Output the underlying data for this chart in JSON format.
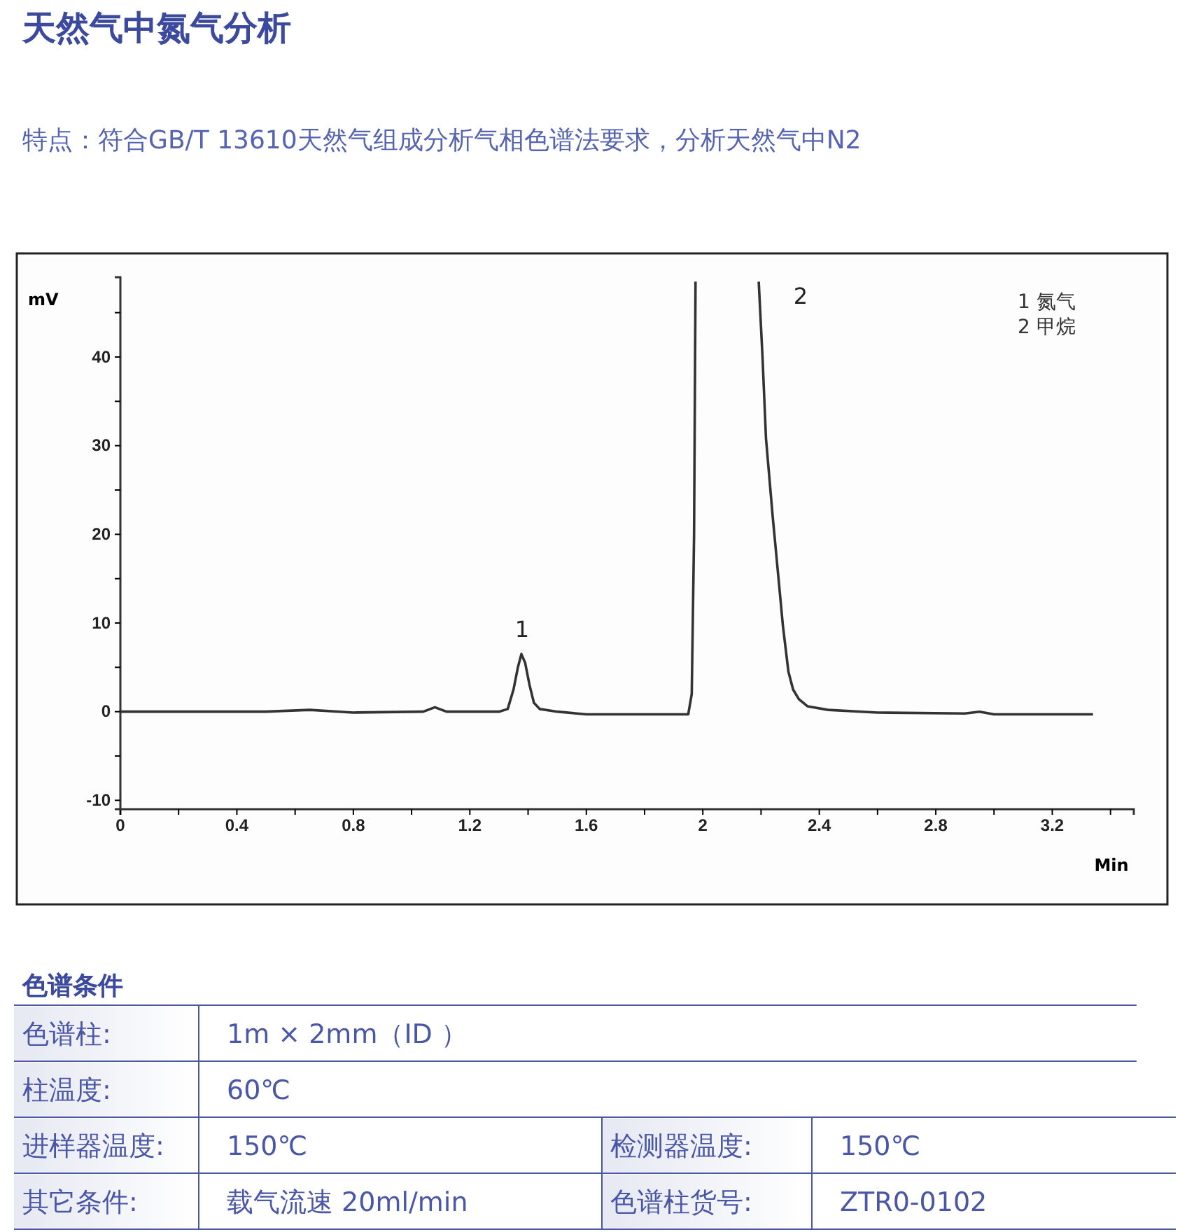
{
  "chart_data": [
    {
      "type": "line",
      "title": "天然气中氮气分析",
      "subtitle": "特点：符合GB/T 13610天然气组成分析气相色谱法要求，分析天然气中N2",
      "xlabel": "Min",
      "ylabel": "mV",
      "xlim": [
        0,
        3.48
      ],
      "ylim": [
        -11,
        49
      ],
      "xticks": [
        0,
        {
          "value": 0.2,
          "label": null
        },
        0.4,
        {
          "value": 0.6,
          "label": null
        },
        0.8,
        {
          "value": 1.0,
          "label": null
        },
        1.2,
        {
          "value": 1.4,
          "label": null
        },
        1.6,
        {
          "value": 1.8,
          "label": null
        },
        2,
        {
          "value": 2.2,
          "label": null
        },
        2.4,
        {
          "value": 2.6,
          "label": null
        },
        2.8,
        {
          "value": 3.0,
          "label": null
        },
        3.2,
        {
          "value": 3.4,
          "label": null
        }
      ],
      "yticks": [
        -10,
        {
          "value": -5,
          "label": null
        },
        0,
        {
          "value": 5,
          "label": null
        },
        10,
        {
          "value": 15,
          "label": null
        },
        20,
        {
          "value": 25,
          "label": null
        },
        30,
        {
          "value": 35,
          "label": null
        },
        40,
        {
          "value": 45,
          "label": null
        }
      ],
      "grid": false,
      "marker": "none",
      "line_style": "solid",
      "series": [
        {
          "color": "#333333",
          "x": [
            0,
            0.5,
            0.65,
            0.8,
            1.04,
            1.08,
            1.12,
            1.3,
            1.33,
            1.35,
            1.365,
            1.377,
            1.39,
            1.405,
            1.42,
            1.44,
            1.5,
            1.6,
            1.8,
            1.95,
            1.962,
            1.97,
            1.975,
            2.08,
            2.192,
            2.205,
            2.217,
            2.24,
            2.26,
            2.275,
            2.294,
            2.31,
            2.33,
            2.36,
            2.43,
            2.6,
            2.9,
            2.95,
            3.0,
            3.34
          ],
          "values": [
            0,
            0,
            0.2,
            -0.1,
            0,
            0.5,
            0,
            0,
            0.3,
            2.5,
            5,
            6.5,
            5.5,
            3,
            1,
            0.3,
            0,
            -0.3,
            -0.3,
            -0.3,
            2,
            20,
            48.5,
            null,
            48.5,
            40,
            30.8,
            22,
            15,
            9.7,
            4.5,
            2.5,
            1.4,
            0.6,
            0.2,
            -0.1,
            -0.2,
            0,
            -0.3,
            -0.3
          ]
        }
      ],
      "annotations": [
        "1",
        "2",
        "1 氮气",
        "2 甲烷"
      ]
    },
    {
      "type": "other",
      "title": "色谱条件",
      "annotations": [
        "色谱柱:",
        "1m × 2mm（ID ）",
        "柱温度:",
        "60℃",
        "进样器温度:",
        "150℃",
        "检测器温度:",
        "150℃",
        "其它条件:",
        "载气流速 20ml/min",
        "色谱柱货号:",
        "ZTR0-0102"
      ]
    }
  ]
}
